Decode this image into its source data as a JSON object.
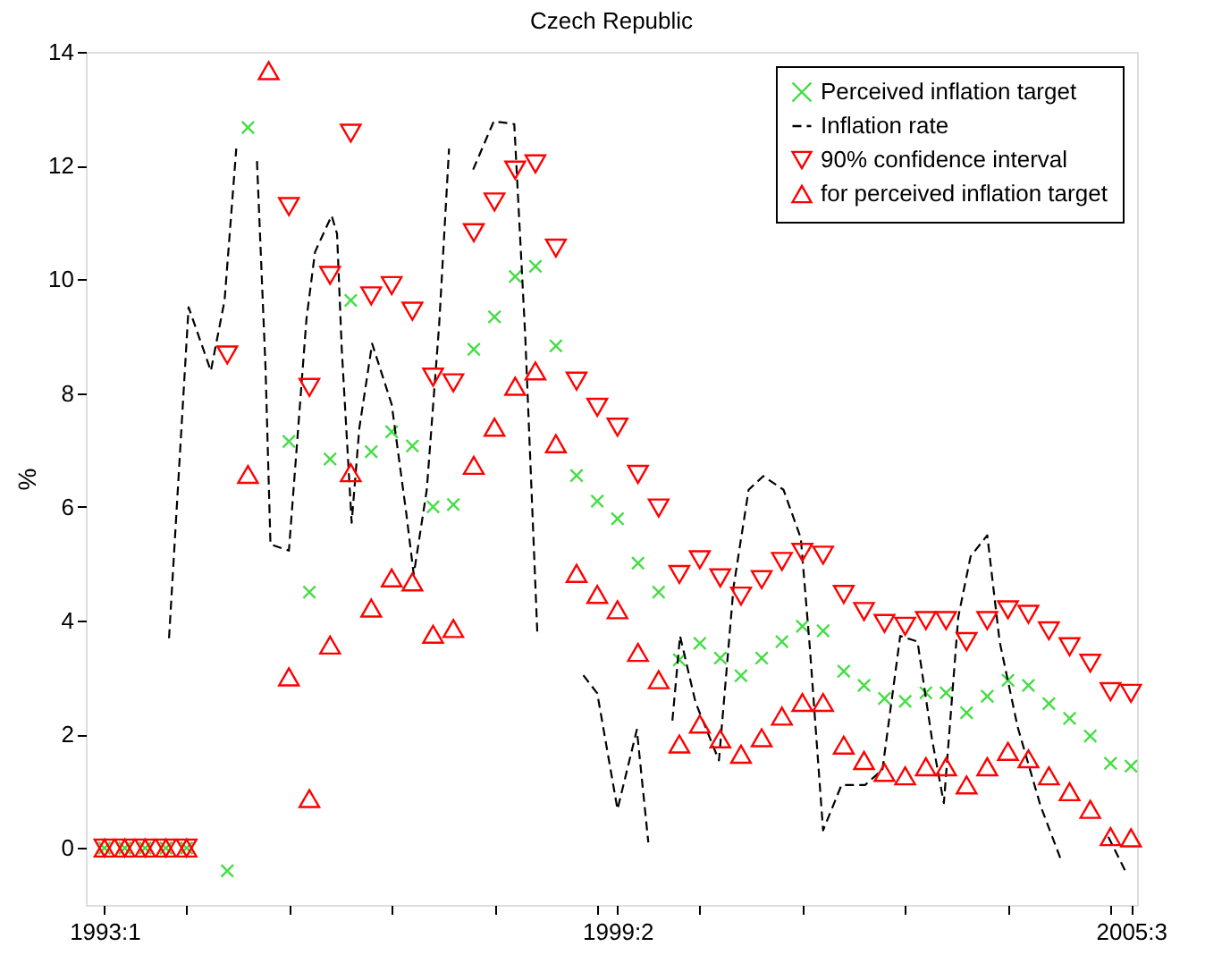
{
  "chart_data": {
    "type": "scatter",
    "title": "Czech Republic",
    "ylabel": "%",
    "x": [
      "1993-01",
      "1993-04",
      "1993-07",
      "1993-10",
      "1994-01",
      "1994-04",
      "1994-07",
      "1994-10",
      "1995-01",
      "1995-04",
      "1995-07",
      "1995-10",
      "1996-01",
      "1996-04",
      "1996-07",
      "1996-10",
      "1997-01",
      "1997-04",
      "1997-07",
      "1997-10",
      "1998-01",
      "1998-04",
      "1998-07",
      "1998-10",
      "1999-01",
      "1999-04",
      "1999-07",
      "1999-10",
      "2000-01",
      "2000-04",
      "2000-07",
      "2000-10",
      "2001-01",
      "2001-04",
      "2001-07",
      "2001-10",
      "2002-01",
      "2002-04",
      "2002-07",
      "2002-10",
      "2003-01",
      "2003-04",
      "2003-07",
      "2003-10",
      "2004-01",
      "2004-04",
      "2004-07",
      "2004-10",
      "2005-01",
      "2005-04",
      "2005-07"
    ],
    "xlim": [
      "1992-10-10",
      "2005-07-28"
    ],
    "xticks": [
      {
        "value": "1993-01",
        "label": "1993:1"
      },
      {
        "value": "1994-01",
        "label": null
      },
      {
        "value": "1995-04",
        "label": null
      },
      {
        "value": "1996-07",
        "label": null
      },
      {
        "value": "1997-10",
        "label": null
      },
      {
        "value": "1999-01",
        "label": null
      },
      {
        "value": "1999-04",
        "label": "1999:2"
      },
      {
        "value": "2000-04",
        "label": null
      },
      {
        "value": "2001-07",
        "label": null
      },
      {
        "value": "2002-10",
        "label": null
      },
      {
        "value": "2004-01",
        "label": null
      },
      {
        "value": "2005-04",
        "label": null
      },
      {
        "value": "2005-07",
        "label": "2005:3"
      }
    ],
    "ylim": [
      -1,
      14
    ],
    "yticks": [
      0,
      2,
      4,
      6,
      8,
      10,
      12,
      14
    ],
    "grid": false,
    "legend": "top right",
    "series": [
      {
        "name": "Perceived inflation target",
        "marker": "cross",
        "color": "#44dd44",
        "values": [
          0,
          0,
          0,
          0,
          0,
          null,
          -0.4,
          12.67,
          null,
          7.15,
          4.5,
          6.84,
          9.63,
          6.97,
          7.32,
          7.07,
          6.0,
          6.04,
          8.77,
          9.34,
          10.05,
          10.23,
          8.83,
          6.55,
          6.1,
          5.79,
          5.01,
          4.5,
          3.31,
          3.6,
          3.34,
          3.03,
          3.34,
          3.63,
          3.9,
          3.82,
          3.11,
          2.86,
          2.63,
          2.58,
          2.73,
          2.73,
          2.38,
          2.67,
          2.95,
          2.86,
          2.54,
          2.28,
          1.97,
          1.49,
          1.44
        ]
      },
      {
        "name": "Inflation rate",
        "type": "line",
        "line_style": "dashed",
        "color": "#000000",
        "x": [
          "1993-10-15",
          "1994-01-10",
          "1994-04-19",
          "1994-06-19",
          "1994-08-10",
          "1994-09-19",
          "1994-10-05",
          "1994-10-22",
          "1994-11-10",
          "1994-12-18",
          "1995-01-09",
          "1995-04-01",
          "1995-06-18",
          "1995-07-26",
          "1995-10-08",
          "1995-11-01",
          "1995-11-22",
          "1996-01-05",
          "1996-02-08",
          "1996-04-05",
          "1996-07-01",
          "1996-09-04",
          "1996-10-07",
          "1996-12-04",
          "1997-01-28",
          "1997-03-13",
          "1997-04-10",
          "1997-06-28",
          "1997-09-28",
          "1997-12-28",
          "1998-02-15",
          "1998-04-10",
          "1998-07-01",
          "1998-07-14",
          "1998-07-28",
          "1998-10-31",
          "1999-01-01",
          "1999-04-01",
          "1999-06-26",
          "1999-08-16",
          "1999-09-13",
          "1999-10-01",
          "1999-10-19",
          "1999-12-01",
          "2000-01-04",
          "2000-03-13",
          "2000-06-25",
          "2000-08-29",
          "2000-11-04",
          "2001-01-08",
          "2001-04-08",
          "2001-06-24",
          "2001-08-03",
          "2001-10-01",
          "2001-12-22",
          "2002-04-06",
          "2002-06-22",
          "2002-09-09",
          "2002-11-25",
          "2003-01-28",
          "2003-03-22",
          "2003-05-25",
          "2003-07-19",
          "2003-10-01",
          "2003-11-25",
          "2004-02-13",
          "2004-05-25",
          "2004-08-25",
          "2004-10-19",
          "2004-12-22",
          "2005-02-25",
          "2005-03-22",
          "2005-06-04"
        ],
        "values": [
          3.69,
          9.51,
          8.39,
          9.63,
          12.3,
          null,
          null,
          null,
          12.08,
          8.45,
          5.34,
          5.23,
          9.3,
          10.48,
          11.12,
          10.8,
          8.77,
          5.72,
          7.38,
          8.87,
          7.8,
          5.88,
          4.81,
          6.3,
          9.2,
          12.3,
          null,
          11.93,
          12.78,
          12.73,
          8.98,
          3.73,
          null,
          null,
          null,
          3.04,
          2.72,
          0.68,
          2.08,
          0.1,
          null,
          null,
          null,
          2.24,
          3.73,
          2.56,
          1.54,
          4.59,
          6.3,
          6.54,
          6.3,
          5.45,
          3.53,
          0.31,
          1.11,
          1.11,
          1.38,
          3.73,
          3.63,
          1.92,
          0.79,
          4.06,
          5.13,
          5.5,
          3.63,
          2.13,
          0.74,
          -0.22,
          null,
          null,
          null,
          0.2,
          -0.39
        ]
      },
      {
        "name": "90% confidence interval",
        "marker": "triangle-down",
        "color": "#ff0000",
        "values": [
          0,
          0,
          0,
          0,
          0,
          null,
          8.67,
          null,
          null,
          11.28,
          8.1,
          10.07,
          12.57,
          9.71,
          9.89,
          9.44,
          8.28,
          8.18,
          10.82,
          11.36,
          11.92,
          12.03,
          10.55,
          8.21,
          7.75,
          7.4,
          6.57,
          5.98,
          4.81,
          5.07,
          4.75,
          4.43,
          4.72,
          5.04,
          5.2,
          5.15,
          4.46,
          4.16,
          3.95,
          3.9,
          4.0,
          4.0,
          3.63,
          4.0,
          4.19,
          4.11,
          3.82,
          3.54,
          3.25,
          2.75,
          2.72
        ]
      },
      {
        "name": "for perceived inflation target",
        "marker": "triangle",
        "color": "#ff0000",
        "values": [
          0,
          0,
          0,
          0,
          0,
          null,
          null,
          6.57,
          13.67,
          3.01,
          0.87,
          3.57,
          6.6,
          4.22,
          4.75,
          4.68,
          3.76,
          3.86,
          6.73,
          7.4,
          8.12,
          8.39,
          7.11,
          4.83,
          4.46,
          4.19,
          3.44,
          2.96,
          1.83,
          2.18,
          1.92,
          1.65,
          1.94,
          2.32,
          2.56,
          2.56,
          1.81,
          1.54,
          1.33,
          1.27,
          1.43,
          1.43,
          1.11,
          1.43,
          1.7,
          1.57,
          1.27,
          0.99,
          0.68,
          0.2,
          0.18
        ]
      }
    ]
  }
}
